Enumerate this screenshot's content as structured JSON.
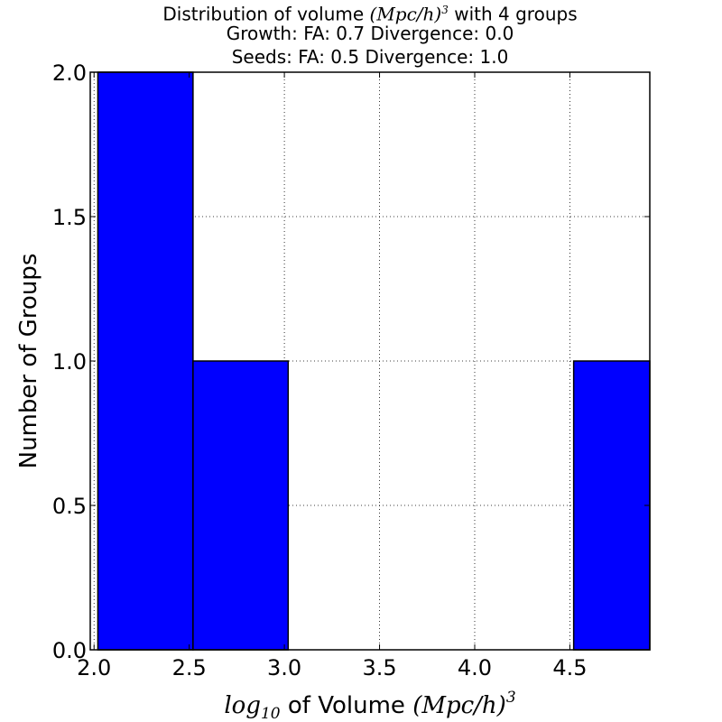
{
  "chart_data": {
    "type": "bar",
    "title": {
      "line1_prefix": "Distribution of volume ",
      "line1_math": "(Mpc/h)",
      "line1_math_sup": "3",
      "line1_suffix": "  with 4 groups",
      "line2": "Growth: FA: 0.7 Divergence: 0.0",
      "line3": "Seeds: FA: 0.5 Divergence: 1.0"
    },
    "xlabel": {
      "math_prefix": "log",
      "math_sub": "10",
      "text": " of Volume ",
      "math_unit": "(Mpc/h)",
      "math_sup": "3"
    },
    "ylabel": "Number of Groups",
    "xlim": [
      1.98,
      4.92
    ],
    "ylim": [
      0,
      2
    ],
    "xticks": [
      2.0,
      2.5,
      3.0,
      3.5,
      4.0,
      4.5
    ],
    "xtick_labels": [
      "2.0",
      "2.5",
      "3.0",
      "3.5",
      "4.0",
      "4.5"
    ],
    "yticks": [
      0,
      0.5,
      1.0,
      1.5,
      2.0
    ],
    "ytick_labels": [
      "0.0",
      "0.5",
      "1.0",
      "1.5",
      "2.0"
    ],
    "bins": [
      {
        "x0": 2.02,
        "x1": 2.52,
        "value": 2
      },
      {
        "x0": 2.52,
        "x1": 3.02,
        "value": 1
      },
      {
        "x0": 3.02,
        "x1": 3.52,
        "value": 0
      },
      {
        "x0": 3.52,
        "x1": 4.02,
        "value": 0
      },
      {
        "x0": 4.02,
        "x1": 4.52,
        "value": 0
      },
      {
        "x0": 4.52,
        "x1": 5.02,
        "value": 1
      }
    ],
    "bar_color": "#0000ff",
    "edge_color": "#000000",
    "grid": true
  }
}
